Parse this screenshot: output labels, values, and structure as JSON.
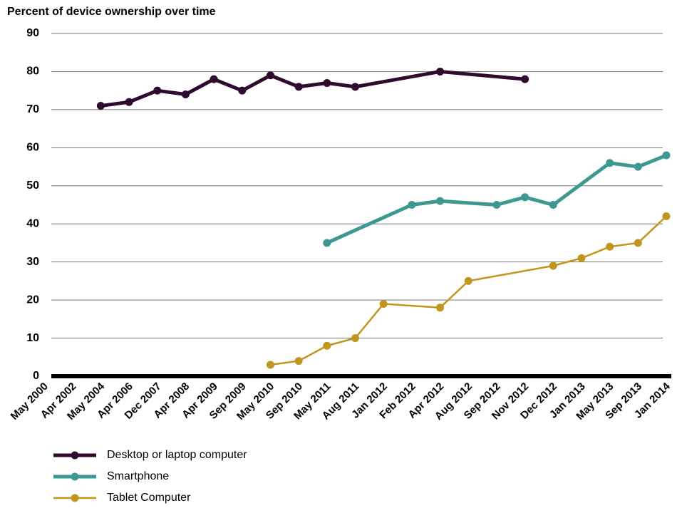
{
  "chart_data": {
    "type": "line",
    "title": "Percent of device ownership over time",
    "categories": [
      "May 2000",
      "Apr 2002",
      "May 2004",
      "Apr 2006",
      "Dec 2007",
      "Apr 2008",
      "Apr 2009",
      "Sep 2009",
      "May 2010",
      "Sep 2010",
      "May 2011",
      "Aug 2011",
      "Jan 2012",
      "Feb 2012",
      "Apr 2012",
      "Aug 2012",
      "Sep 2012",
      "Nov 2012",
      "Dec 2012",
      "Jan 2013",
      "May 2013",
      "Sep 2013",
      "Jan 2014"
    ],
    "series": [
      {
        "name": "Desktop or laptop computer",
        "color": "#2d0a2e",
        "line_width": 5,
        "values": [
          null,
          null,
          71,
          72,
          75,
          74,
          78,
          75,
          79,
          76,
          77,
          76,
          null,
          null,
          80,
          null,
          null,
          78,
          null,
          null,
          null,
          null,
          null
        ]
      },
      {
        "name": "Smartphone",
        "color": "#3c9891",
        "line_width": 5,
        "values": [
          null,
          null,
          null,
          null,
          null,
          null,
          null,
          null,
          null,
          null,
          35,
          null,
          null,
          45,
          46,
          null,
          45,
          47,
          45,
          null,
          56,
          55,
          58
        ]
      },
      {
        "name": "Tablet Computer",
        "color": "#c0961e",
        "line_width": 2.5,
        "values": [
          null,
          null,
          null,
          null,
          null,
          null,
          null,
          null,
          3,
          4,
          8,
          10,
          19,
          null,
          18,
          25,
          null,
          null,
          29,
          31,
          34,
          35,
          42
        ]
      }
    ],
    "ylim": [
      0,
      90
    ],
    "yticks": [
      0,
      10,
      20,
      30,
      40,
      50,
      60,
      70,
      80,
      90
    ],
    "grid": true,
    "span_gaps": true,
    "legend": "bottom"
  }
}
